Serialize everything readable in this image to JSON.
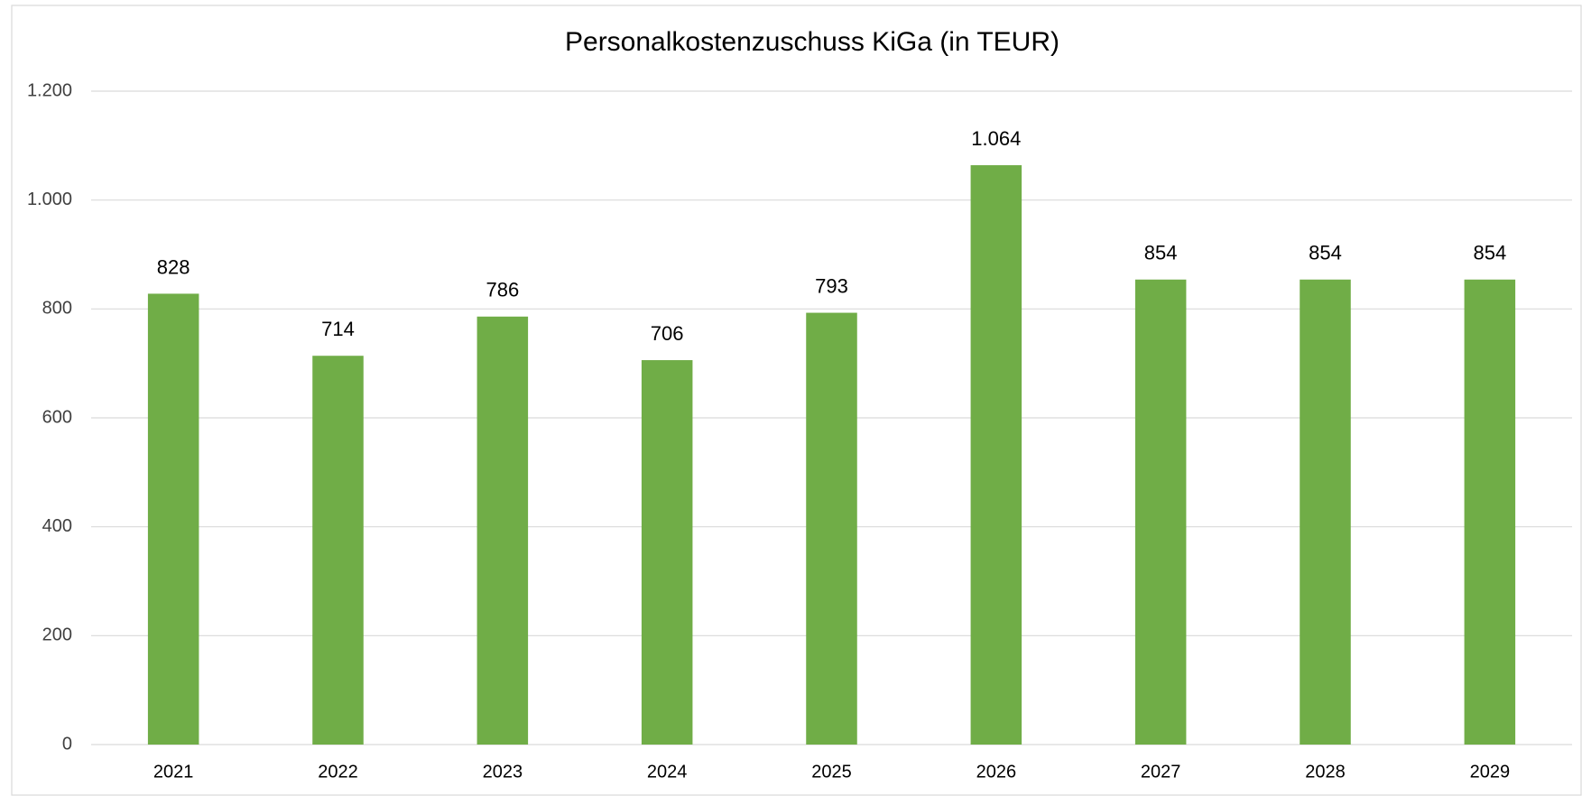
{
  "chart_data": {
    "type": "bar",
    "title": "Personalkostenzuschuss KiGa (in TEUR)",
    "categories": [
      "2021",
      "2022",
      "2023",
      "2024",
      "2025",
      "2026",
      "2027",
      "2028",
      "2029"
    ],
    "values": [
      828,
      714,
      786,
      706,
      793,
      1064,
      854,
      854,
      854
    ],
    "value_labels": [
      "828",
      "714",
      "786",
      "706",
      "793",
      "1.064",
      "854",
      "854",
      "854"
    ],
    "color": "#70ad47",
    "ylim": [
      0,
      1200
    ],
    "yticks": [
      0,
      200,
      400,
      600,
      800,
      {
        "value": 1000,
        "label": "1.000"
      },
      {
        "value": 1200,
        "label": "1.200"
      }
    ],
    "grid": true
  }
}
